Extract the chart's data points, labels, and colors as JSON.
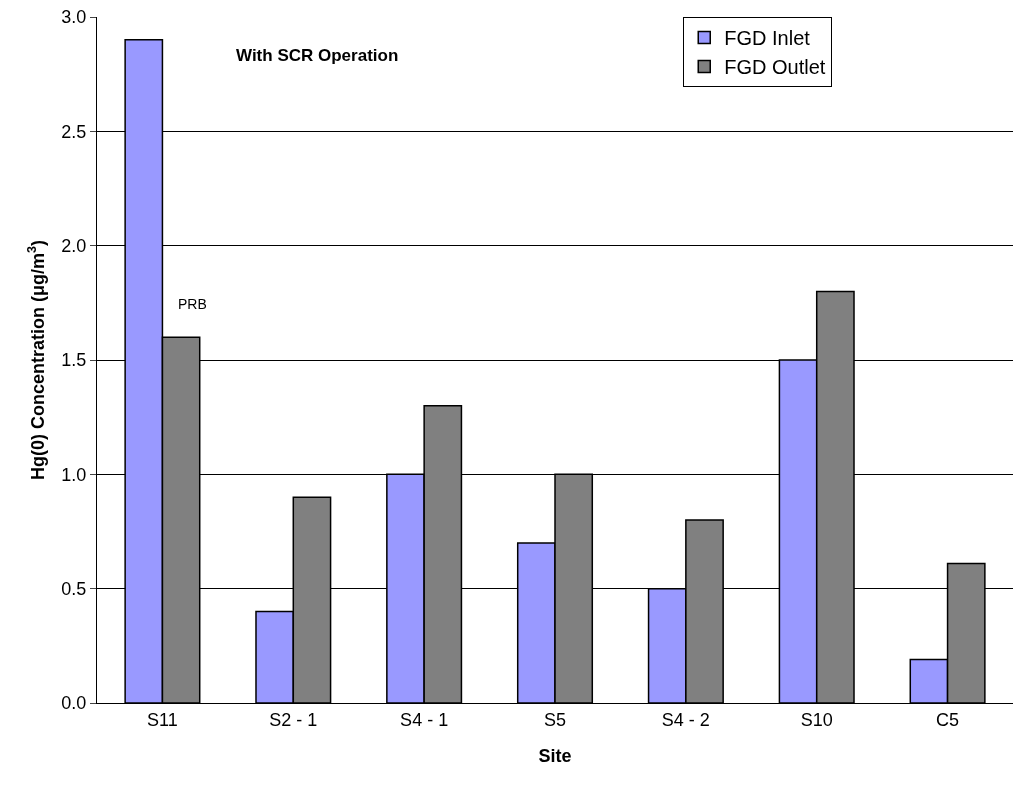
{
  "chart_data": {
    "type": "bar",
    "xlabel": "Site",
    "ylabel": "Hg(0) Concentration (μg/m$^{3}$)",
    "categories": [
      "S11",
      "S2 - 1",
      "S4 - 1",
      "S5",
      "S4 - 2",
      "S10",
      "C5"
    ],
    "series": [
      {
        "name": "FGD Inlet",
        "color": "#9999ff",
        "values": [
          2.9,
          0.4,
          1.0,
          0.7,
          0.5,
          1.5,
          0.19
        ]
      },
      {
        "name": "FGD Outlet",
        "color": "#808080",
        "values": [
          1.6,
          0.9,
          1.3,
          1.0,
          0.8,
          1.8,
          0.61
        ]
      }
    ],
    "ylim": [
      0,
      3
    ],
    "yticks": [
      {
        "value": 0,
        "label": "0.0"
      },
      {
        "value": 0.5,
        "label": "0.5"
      },
      {
        "value": 1,
        "label": "1.0"
      },
      {
        "value": 1.5,
        "label": "1.5"
      },
      {
        "value": 2,
        "label": "2.0"
      },
      {
        "value": 2.5,
        "label": "2.5"
      },
      {
        "value": 3,
        "label": "3.0"
      }
    ],
    "annotations": [
      "With SCR Operation",
      {
        "text": "PRB",
        "x": "S11",
        "y": 1.7
      }
    ],
    "grid": "y",
    "legend": "top right"
  }
}
